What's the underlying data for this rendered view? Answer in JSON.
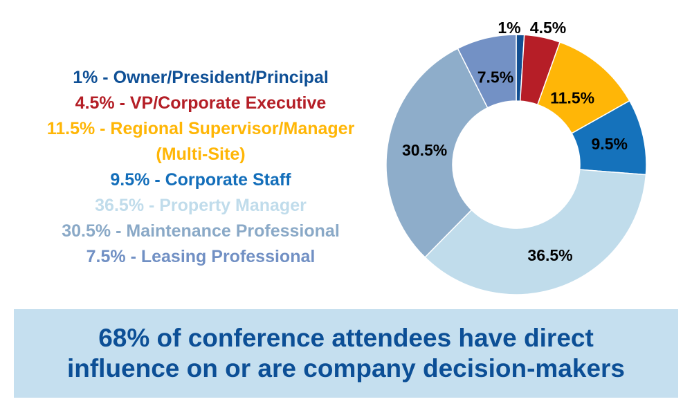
{
  "legend": {
    "entries": [
      {
        "text": "1% - Owner/President/Principal",
        "color": "#0e4f95"
      },
      {
        "text": "4.5% - VP/Corporate Executive",
        "color": "#b41e26"
      },
      {
        "text": "11.5% - Regional Supervisor/Manager",
        "color": "#ffb606"
      },
      {
        "text": "(Multi-Site)",
        "color": "#ffb606"
      },
      {
        "text": "9.5% - Corporate Staff",
        "color": "#136eba"
      },
      {
        "text": "36.5% - Property Manager",
        "color": "#c0dceb"
      },
      {
        "text": "30.5% - Maintenance Professional",
        "color": "#8aa9c7"
      },
      {
        "text": "7.5% - Leasing Professional",
        "color": "#7190c4"
      }
    ]
  },
  "chart_data": {
    "type": "pie",
    "donut": true,
    "categories": [
      "Owner/President/Principal",
      "VP/Corporate Executive",
      "Regional Supervisor/Manager (Multi-Site)",
      "Corporate Staff",
      "Property Manager",
      "Maintenance Professional",
      "Leasing Professional"
    ],
    "values": [
      1,
      4.5,
      11.5,
      9.5,
      36.5,
      30.5,
      7.5
    ],
    "labels": [
      "1%",
      "4.5%",
      "11.5%",
      "9.5%",
      "36.5%",
      "30.5%",
      "7.5%"
    ],
    "colors": [
      "#124f92",
      "#b61e27",
      "#ffb607",
      "#1572bb",
      "#c0dceb",
      "#8eadca",
      "#7391c5"
    ],
    "legend_position": "left"
  },
  "banner": {
    "line1": "68% of conference attendees have direct",
    "line2": "influence on or are company decision-makers",
    "background": "#c5dfef",
    "color": "#0c4f96"
  }
}
